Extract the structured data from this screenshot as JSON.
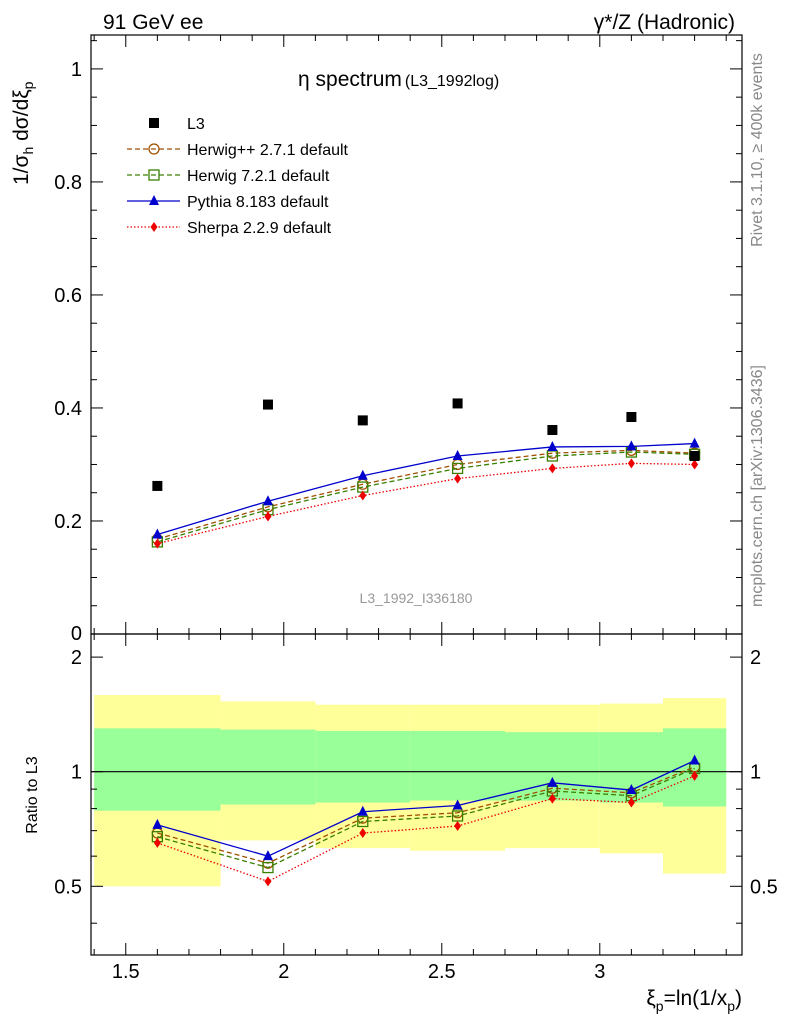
{
  "header": {
    "left": "91 GeV ee",
    "right": "γ*/Z (Hadronic)"
  },
  "side_labels": {
    "rivet": "Rivet 3.1.10, ≥ 400k events",
    "mcplots": "mcplots.cern.ch [arXiv:1306.3436]"
  },
  "chart_data": {
    "type": "line",
    "title": "η spectrum",
    "title_suffix": "(L3_1992log)",
    "watermark": "L3_1992_I336180",
    "xlabel": "ξp=ln(1/xp)",
    "ylabel": "1/σh dσ/dξp",
    "xlim": [
      1.39,
      3.45
    ],
    "ylim": [
      0,
      1.06
    ],
    "ratio_ylim": [
      0.33,
      2.3
    ],
    "ratio_ylabel": "Ratio to L3",
    "x_ticks": [
      "1.5",
      "2",
      "2.5",
      "3"
    ],
    "y_ticks": [
      "0.2",
      "0.4",
      "0.6",
      "0.8",
      "1"
    ],
    "y_tick_zero": "0",
    "ratio_y_ticks": [
      "0.5",
      "1",
      "2"
    ],
    "bins": [
      [
        1.4,
        1.8
      ],
      [
        1.8,
        2.1
      ],
      [
        2.1,
        2.4
      ],
      [
        2.4,
        2.7
      ],
      [
        2.7,
        3.0
      ],
      [
        3.0,
        3.2
      ],
      [
        3.2,
        3.4
      ]
    ],
    "x": [
      1.6,
      1.95,
      2.25,
      2.55,
      2.85,
      3.1,
      3.3
    ],
    "data": {
      "name": "L3",
      "values": [
        0.262,
        0.406,
        0.378,
        0.408,
        0.361,
        0.384,
        0.315
      ],
      "ratio_band_green": [
        [
          0.79,
          1.3
        ],
        [
          0.82,
          1.29
        ],
        [
          0.83,
          1.28
        ],
        [
          0.84,
          1.28
        ],
        [
          0.84,
          1.27
        ],
        [
          0.83,
          1.27
        ],
        [
          0.81,
          1.3
        ]
      ],
      "ratio_band_yellow": [
        [
          0.5,
          1.59
        ],
        [
          0.66,
          1.53
        ],
        [
          0.63,
          1.5
        ],
        [
          0.62,
          1.5
        ],
        [
          0.63,
          1.5
        ],
        [
          0.61,
          1.51
        ],
        [
          0.54,
          1.56
        ]
      ]
    },
    "series": [
      {
        "name": "Herwig++ 2.7.1 default",
        "color": "#a05000",
        "dash": "5,3",
        "marker": "circle",
        "values": [
          0.168,
          0.225,
          0.265,
          0.3,
          0.32,
          0.325,
          0.32
        ],
        "ratio": [
          0.69,
          0.575,
          0.755,
          0.78,
          0.905,
          0.88,
          1.03
        ]
      },
      {
        "name": "Herwig 7.2.1 default",
        "color": "#3a8000",
        "dash": "5,3",
        "marker": "square",
        "values": [
          0.163,
          0.22,
          0.26,
          0.293,
          0.315,
          0.322,
          0.318
        ],
        "ratio": [
          0.675,
          0.56,
          0.74,
          0.765,
          0.89,
          0.865,
          1.02
        ]
      },
      {
        "name": "Pythia 8.183 default",
        "color": "#0000cc",
        "dash": "",
        "marker": "triangle",
        "values": [
          0.176,
          0.235,
          0.28,
          0.315,
          0.331,
          0.332,
          0.337
        ],
        "ratio": [
          0.725,
          0.6,
          0.785,
          0.815,
          0.935,
          0.895,
          1.07
        ]
      },
      {
        "name": "Sherpa 2.2.9 default",
        "color": "#ee0000",
        "dash": "1.5,2",
        "marker": "diamond",
        "values": [
          0.16,
          0.208,
          0.245,
          0.275,
          0.293,
          0.302,
          0.3
        ],
        "ratio": [
          0.65,
          0.515,
          0.69,
          0.72,
          0.85,
          0.83,
          0.975
        ]
      }
    ]
  }
}
